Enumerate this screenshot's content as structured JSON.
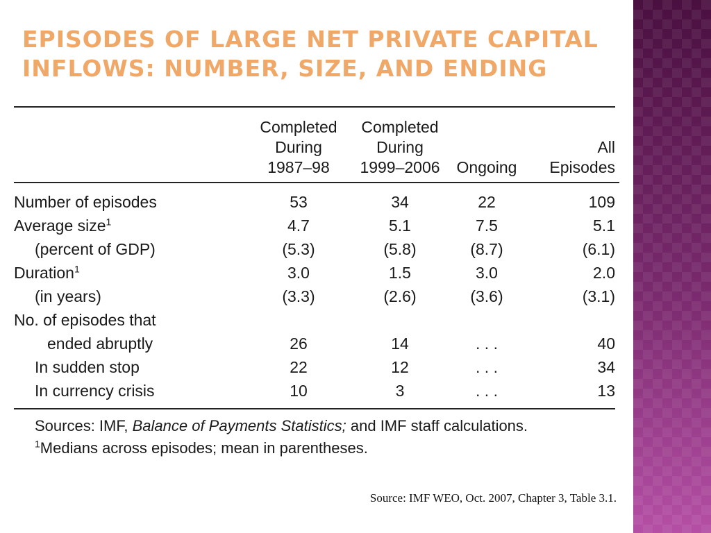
{
  "slide": {
    "title_line1": "Episodes of Large Net Private Capital",
    "title_line2": "Inflows: Number, Size, and Ending"
  },
  "table": {
    "columns": [
      {
        "line1": "Completed",
        "line2": "During",
        "line3": "1987–98"
      },
      {
        "line1": "Completed",
        "line2": "During",
        "line3": "1999–2006"
      },
      {
        "line1": "",
        "line2": "",
        "line3": "Ongoing"
      },
      {
        "line1": "",
        "line2": "All",
        "line3": "Episodes"
      }
    ],
    "rows": {
      "number_of_episodes": {
        "label": "Number of episodes",
        "values": [
          "53",
          "34",
          "22",
          "109"
        ]
      },
      "average_size": {
        "label": "Average size",
        "sup": "1",
        "values": [
          "4.7",
          "5.1",
          "7.5",
          "5.1"
        ]
      },
      "average_size_pct": {
        "label": "(percent of GDP)",
        "values": [
          "(5.3)",
          "(5.8)",
          "(8.7)",
          "(6.1)"
        ]
      },
      "duration": {
        "label": "Duration",
        "sup": "1",
        "values": [
          "3.0",
          "1.5",
          "3.0",
          "2.0"
        ]
      },
      "duration_years": {
        "label": "(in years)",
        "values": [
          "(3.3)",
          "(2.6)",
          "(3.6)",
          "(3.1)"
        ]
      },
      "ended_abruptly_heading": {
        "label": "No. of episodes that"
      },
      "ended_abruptly": {
        "label": "ended abruptly",
        "values": [
          "26",
          "14",
          ". . .",
          "40"
        ]
      },
      "sudden_stop": {
        "label": "In sudden stop",
        "values": [
          "22",
          "12",
          ". . .",
          "34"
        ]
      },
      "currency_crisis": {
        "label": "In currency crisis",
        "values": [
          "10",
          "3",
          ". . .",
          "13"
        ]
      }
    },
    "notes": {
      "sources_prefix": "Sources: IMF,",
      "sources_italic": "Balance of Payments Statistics;",
      "sources_suffix": "and IMF staff calculations.",
      "footnote_marker": "1",
      "footnote_text": "Medians across episodes; mean in parentheses."
    }
  },
  "source_caption": "Source: IMF WEO, Oct. 2007, Chapter 3, Table 3.1.",
  "colors": {
    "title": "#f0a868",
    "side_band": "#6b1f5e"
  }
}
